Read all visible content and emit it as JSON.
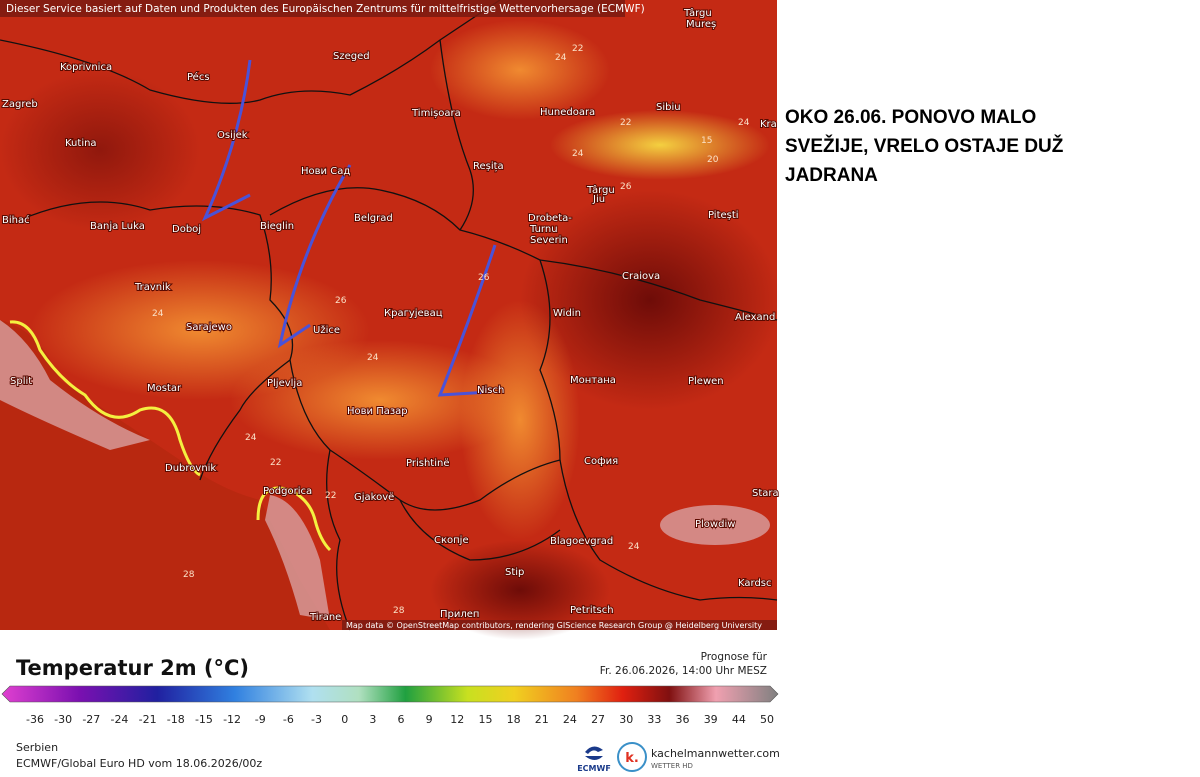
{
  "header": {
    "notice": "Dieser Service basiert auf Daten und Produkten des Europäischen Zentrums für mittelfristige Wettervorhersage (ECMWF)"
  },
  "map": {
    "cities": [
      "Koprivnica",
      "Pécs",
      "Szeged",
      "Zagreb",
      "Osijek",
      "Timișoara",
      "Hunedoara",
      "Sibiu",
      "Kutina",
      "Нови Сад",
      "Reșița",
      "Târgu",
      "Jiu",
      "Pitești",
      "Banja Luka",
      "Doboj",
      "Bieglin",
      "Belgrad",
      "Drobeta-",
      "Turnu",
      "Severin",
      "Craiova",
      "Travnik",
      "Widin",
      "Alexand",
      "Sarajewo",
      "Užice",
      "Крагујевац",
      "Mostar",
      "Pljevlja",
      "Nisch",
      "Монтана",
      "Plewen",
      "Split",
      "Нови Пазар",
      "Dubrovnik",
      "Prishtinë",
      "София",
      "Podgorica",
      "Gjakovë",
      "Stara",
      "Plowdiw",
      "Скопје",
      "Blagoevgrad",
      "Stip",
      "Kardsc",
      "Petritsch",
      "Tirane",
      "Прилеп",
      "Târgu",
      "Mureș",
      "Kra",
      "Bihać"
    ],
    "contour_labels": [
      "22",
      "24",
      "22",
      "24",
      "24",
      "26",
      "24",
      "26",
      "24",
      "22",
      "24",
      "28",
      "22",
      "28",
      "26",
      "20",
      "24",
      "15"
    ],
    "attribution": "Map data © OpenStreetMap contributors, rendering GIScience Research Group @ Heidelberg University"
  },
  "annotation": {
    "lines": [
      "OKO 26.06. PONOVO MALO",
      "SVEŽIJE, VRELO OSTAJE DUŽ",
      "JADRANA"
    ]
  },
  "legend": {
    "title": "Temperatur 2m (°C)",
    "ticks": [
      -36,
      -30,
      -27,
      -24,
      -21,
      -18,
      -15,
      -12,
      -9,
      -6,
      -3,
      0,
      3,
      6,
      9,
      12,
      15,
      18,
      21,
      24,
      27,
      30,
      33,
      36,
      39,
      44,
      50
    ]
  },
  "forecast": {
    "label": "Prognose für",
    "time": "Fr. 26.06.2026, 14:00 Uhr MESZ"
  },
  "footer": {
    "region": "Serbien",
    "model": "ECMWF/Global Euro HD vom  18.06.2026/00z",
    "ecmwf": "ECMWF",
    "brand": "kachelmannwetter.com",
    "brand_sub": "WETTER HD",
    "brand_icon": "k."
  }
}
